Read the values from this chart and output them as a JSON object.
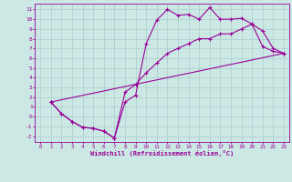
{
  "xlabel": "Windchill (Refroidissement éolien,°C)",
  "bg_color": "#cce8e4",
  "line_color": "#990099",
  "grid_color": "#aacccc",
  "xlim": [
    -0.5,
    23.5
  ],
  "ylim": [
    -2.6,
    11.6
  ],
  "xticks": [
    0,
    1,
    2,
    3,
    4,
    5,
    6,
    7,
    8,
    9,
    10,
    11,
    12,
    13,
    14,
    15,
    16,
    17,
    18,
    19,
    20,
    21,
    22,
    23
  ],
  "yticks": [
    -2,
    -1,
    0,
    1,
    2,
    3,
    4,
    5,
    6,
    7,
    8,
    9,
    10,
    11
  ],
  "line1_x": [
    1,
    2,
    3,
    4,
    5,
    6,
    7,
    8,
    9,
    10,
    11,
    12,
    13,
    14,
    15,
    16,
    17,
    18,
    19,
    20,
    21,
    22,
    23
  ],
  "line1_y": [
    1.5,
    0.3,
    -0.5,
    -1.1,
    -1.2,
    -1.5,
    -2.2,
    1.5,
    2.2,
    7.5,
    9.9,
    11.0,
    10.4,
    10.5,
    10.0,
    11.2,
    10.0,
    10.0,
    10.1,
    9.5,
    7.2,
    6.7,
    6.5
  ],
  "line2_x": [
    1,
    2,
    3,
    4,
    5,
    6,
    7,
    8,
    9,
    10,
    11,
    12,
    13,
    14,
    15,
    16,
    17,
    18,
    19,
    20,
    21,
    22,
    23
  ],
  "line2_y": [
    1.5,
    0.3,
    -0.5,
    -1.1,
    -1.2,
    -1.5,
    -2.2,
    2.5,
    3.3,
    4.5,
    5.5,
    6.5,
    7.0,
    7.5,
    8.0,
    8.0,
    8.5,
    8.5,
    9.0,
    9.5,
    8.8,
    7.0,
    6.5
  ],
  "line3_x": [
    1,
    23
  ],
  "line3_y": [
    1.5,
    6.5
  ]
}
